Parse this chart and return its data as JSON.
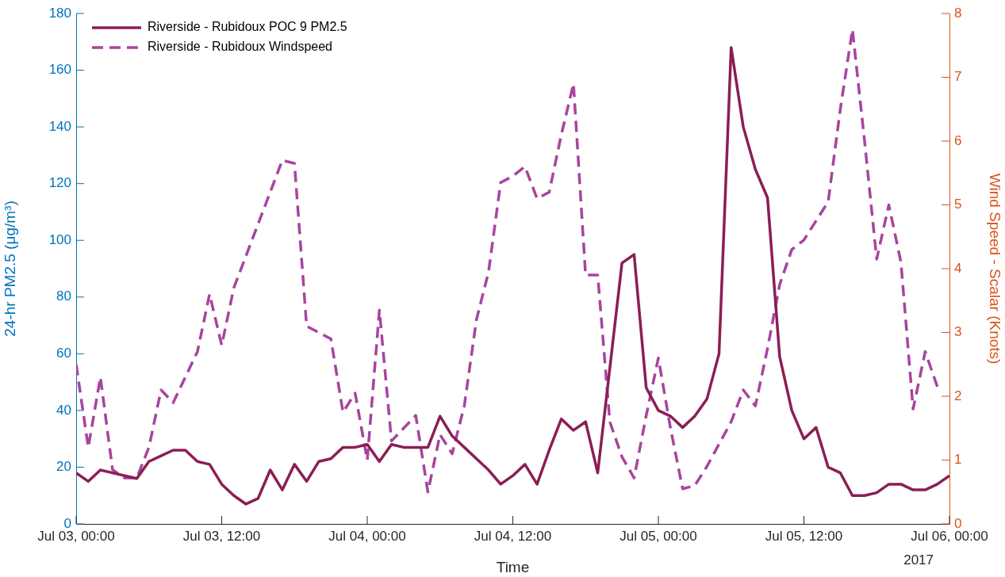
{
  "chart_data": {
    "type": "line",
    "xlabel": "Time",
    "ylabel": "24-hr PM2.5 (μg/m³)",
    "y2label": "Wind Speed - Scalar (Knots)",
    "x": [
      "2017-07-03T00:00",
      "2017-07-03T01:00",
      "2017-07-03T02:00",
      "2017-07-03T03:00",
      "2017-07-03T04:00",
      "2017-07-03T05:00",
      "2017-07-03T06:00",
      "2017-07-03T07:00",
      "2017-07-03T08:00",
      "2017-07-03T09:00",
      "2017-07-03T10:00",
      "2017-07-03T11:00",
      "2017-07-03T12:00",
      "2017-07-03T13:00",
      "2017-07-03T14:00",
      "2017-07-03T15:00",
      "2017-07-03T16:00",
      "2017-07-03T17:00",
      "2017-07-03T18:00",
      "2017-07-03T19:00",
      "2017-07-03T20:00",
      "2017-07-03T21:00",
      "2017-07-03T22:00",
      "2017-07-03T23:00",
      "2017-07-04T00:00",
      "2017-07-04T01:00",
      "2017-07-04T02:00",
      "2017-07-04T03:00",
      "2017-07-04T04:00",
      "2017-07-04T05:00",
      "2017-07-04T06:00",
      "2017-07-04T07:00",
      "2017-07-04T08:00",
      "2017-07-04T09:00",
      "2017-07-04T10:00",
      "2017-07-04T11:00",
      "2017-07-04T12:00",
      "2017-07-04T13:00",
      "2017-07-04T14:00",
      "2017-07-04T15:00",
      "2017-07-04T16:00",
      "2017-07-04T17:00",
      "2017-07-04T18:00",
      "2017-07-04T19:00",
      "2017-07-04T20:00",
      "2017-07-04T21:00",
      "2017-07-04T22:00",
      "2017-07-04T23:00",
      "2017-07-05T00:00",
      "2017-07-05T01:00",
      "2017-07-05T02:00",
      "2017-07-05T03:00",
      "2017-07-05T04:00",
      "2017-07-05T05:00",
      "2017-07-05T06:00",
      "2017-07-05T07:00",
      "2017-07-05T08:00",
      "2017-07-05T09:00",
      "2017-07-05T10:00",
      "2017-07-05T11:00",
      "2017-07-05T12:00",
      "2017-07-05T13:00",
      "2017-07-05T14:00",
      "2017-07-05T15:00",
      "2017-07-05T16:00",
      "2017-07-05T17:00",
      "2017-07-05T18:00",
      "2017-07-05T19:00",
      "2017-07-05T20:00",
      "2017-07-05T21:00",
      "2017-07-05T22:00",
      "2017-07-05T23:00",
      "2017-07-06T00:00"
    ],
    "series": [
      {
        "name": "Riverside - Rubidoux POC 9 PM2.5",
        "color": "#8b1e55",
        "line_style": "solid",
        "values": [
          18,
          15,
          19,
          18,
          17,
          16,
          22,
          24,
          26,
          26,
          22,
          21,
          14,
          10,
          7,
          9,
          19,
          12,
          21,
          15,
          22,
          23,
          27,
          27,
          28,
          22,
          28,
          27,
          27,
          27,
          38,
          31,
          27,
          23,
          19,
          14,
          17,
          21,
          14,
          26,
          37,
          33,
          36,
          18,
          55,
          92,
          95,
          48,
          40,
          38,
          34,
          38,
          44,
          60,
          168,
          140,
          125,
          115,
          59,
          40,
          30,
          34,
          20,
          18,
          10,
          10,
          11,
          14,
          14,
          12,
          12,
          14,
          17
        ]
      },
      {
        "name": "Riverside - Rubidoux Windspeed",
        "color": "#a8449e",
        "line_style": "dashed",
        "axis": "y2",
        "values": [
          2.5,
          1.2,
          2.3,
          0.85,
          0.72,
          0.72,
          1.2,
          2.1,
          1.9,
          2.3,
          2.7,
          3.6,
          2.8,
          3.7,
          4.2,
          4.7,
          5.2,
          5.7,
          5.65,
          3.1,
          3.0,
          2.9,
          1.75,
          2.05,
          1.0,
          3.35,
          1.3,
          1.5,
          1.7,
          0.5,
          1.4,
          1.1,
          1.85,
          3.2,
          3.95,
          5.35,
          5.45,
          5.6,
          5.1,
          5.2,
          6.1,
          6.9,
          3.9,
          3.9,
          1.6,
          1.05,
          0.72,
          1.7,
          2.6,
          1.5,
          0.55,
          0.6,
          0.9,
          1.25,
          1.6,
          2.1,
          1.85,
          2.75,
          3.75,
          4.3,
          4.45,
          4.75,
          5.05,
          6.5,
          7.75,
          6.0,
          4.15,
          5.0,
          4.1,
          1.8,
          2.7,
          2.15,
          null
        ]
      }
    ],
    "xlim": [
      "2017-07-03T00:00",
      "2017-07-06T00:00"
    ],
    "xticks": [
      {
        "value": "2017-07-03T00:00",
        "label": "Jul 03, 00:00"
      },
      {
        "value": "2017-07-03T12:00",
        "label": "Jul 03, 12:00"
      },
      {
        "value": "2017-07-04T00:00",
        "label": "Jul 04, 00:00"
      },
      {
        "value": "2017-07-04T12:00",
        "label": "Jul 04, 12:00"
      },
      {
        "value": "2017-07-05T00:00",
        "label": "Jul 05, 00:00"
      },
      {
        "value": "2017-07-05T12:00",
        "label": "Jul 05, 12:00"
      },
      {
        "value": "2017-07-06T00:00",
        "label": "Jul 06, 00:00"
      }
    ],
    "ylim": [
      0,
      180
    ],
    "yticks": [
      0,
      20,
      40,
      60,
      80,
      100,
      120,
      140,
      160,
      180
    ],
    "y2lim": [
      0,
      8
    ],
    "y2ticks": [
      0,
      1,
      2,
      3,
      4,
      5,
      6,
      7,
      8
    ],
    "annotations": [
      "2017"
    ],
    "legend": "top left",
    "grid": false,
    "marker": "none"
  }
}
